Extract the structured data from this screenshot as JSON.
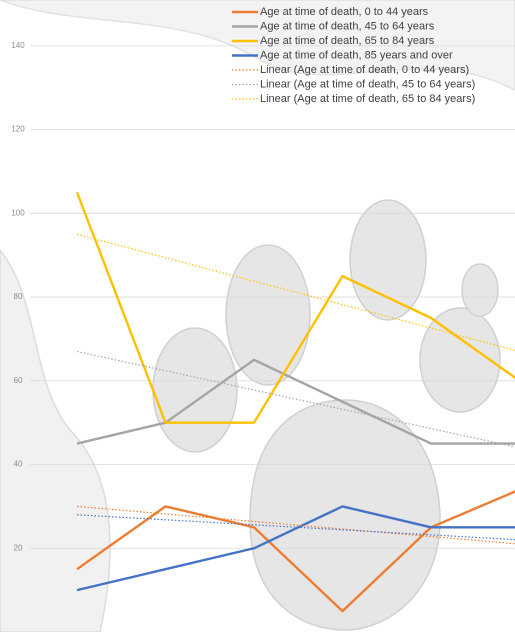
{
  "chart_data": {
    "type": "line",
    "categories": [
      null,
      null,
      null,
      null,
      null,
      null
    ],
    "ylim": [
      0,
      150
    ],
    "yticks": [
      20,
      40,
      60,
      80,
      100,
      120,
      140
    ],
    "grid": true,
    "legend": "top-right",
    "series": [
      {
        "name": "Age at time of death, 0 to 44 years",
        "color": "#ed7d31",
        "values": [
          15,
          30,
          25,
          5,
          25,
          34
        ]
      },
      {
        "name": "Age at time of death, 45 to 64 years",
        "color": "#a5a5a5",
        "values": [
          45,
          50,
          65,
          55,
          45,
          45
        ]
      },
      {
        "name": "Age at time of death, 65 to 84 years",
        "color": "#ffc000",
        "values": [
          105,
          50,
          50,
          85,
          75,
          60
        ]
      },
      {
        "name": "Age at time of death, 85 years and over",
        "color": "#4472c4",
        "values": [
          10,
          15,
          20,
          30,
          25,
          25
        ]
      },
      {
        "name": "Linear (Age at time of death, 0 to 44 years)",
        "color": "#ed7d31",
        "trendline": true,
        "values": [
          30,
          28.2,
          26.4,
          24.6,
          22.8,
          21
        ]
      },
      {
        "name": "Linear (Age at time of death, 45 to 64 years)",
        "color": "#a5a5a5",
        "trendline": true,
        "values": [
          67,
          62.4,
          57.8,
          53.2,
          48.6,
          44
        ]
      },
      {
        "name": "Linear (Age at time of death, 65 to 84 years)",
        "color": "#ffc000",
        "trendline": true,
        "values": [
          95,
          89.4,
          83.8,
          78.2,
          72.6,
          67
        ]
      },
      {
        "color": "#4472c4",
        "trendline": true,
        "values": [
          28,
          26.8,
          25.6,
          24.4,
          23.2,
          22
        ]
      }
    ]
  }
}
